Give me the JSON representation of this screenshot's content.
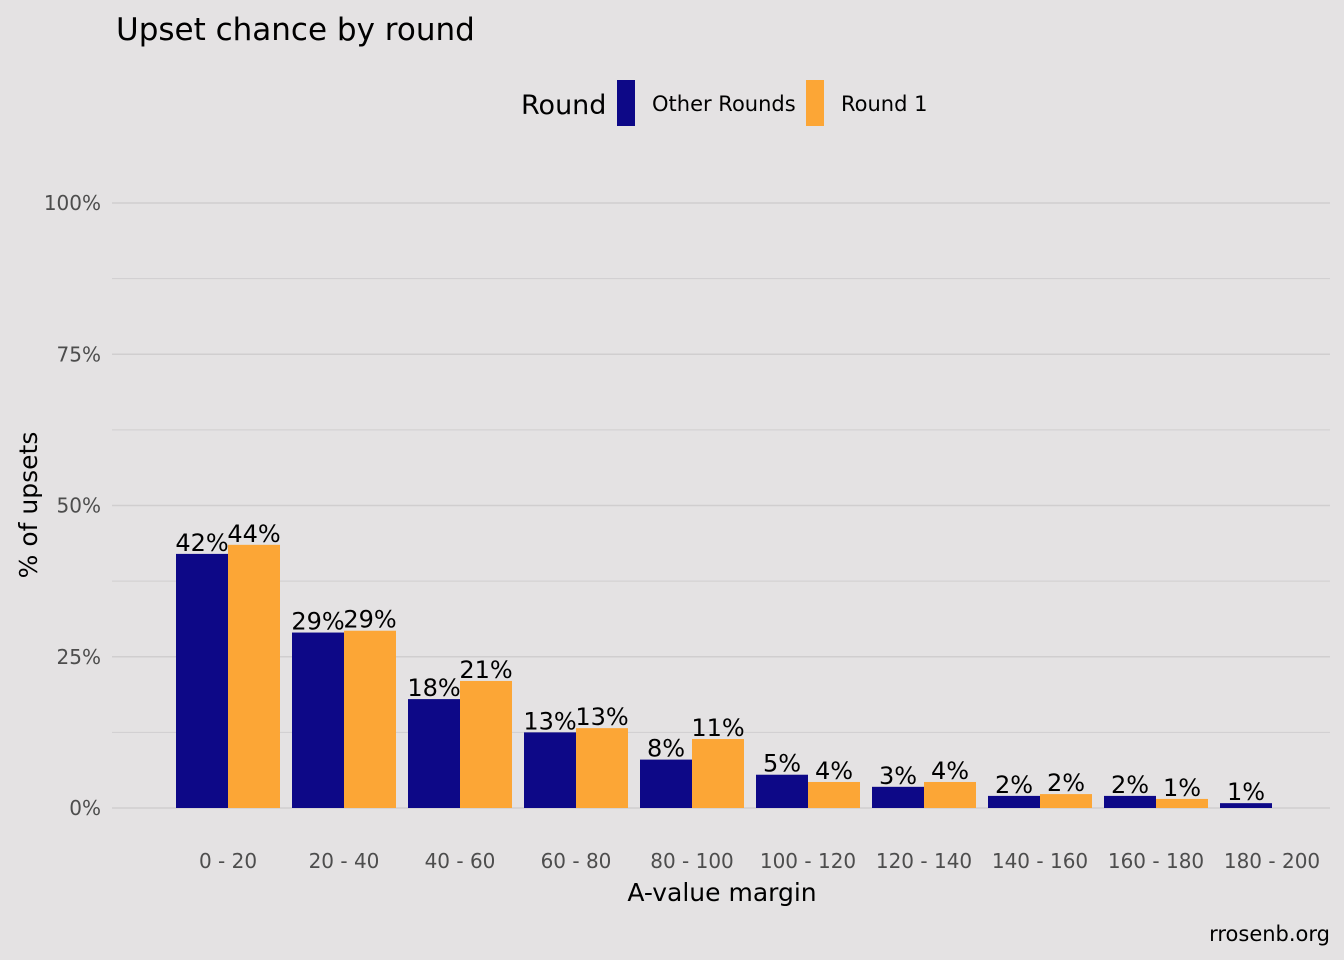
{
  "chart_data": {
    "type": "bar",
    "title": "Upset chance by round",
    "xlabel": "A-value margin",
    "ylabel": "% of upsets",
    "caption": "rrosenb.org",
    "legend": {
      "title": "Round",
      "placement": "top"
    },
    "categories": [
      "0 - 20",
      "20 - 40",
      "40 - 60",
      "60 - 80",
      "80 - 100",
      "100 - 120",
      "120 - 140",
      "140 - 160",
      "160 - 180",
      "180 - 200"
    ],
    "series": [
      {
        "name": "Other Rounds",
        "color": "#0d0887",
        "values": [
          42,
          29,
          18,
          12.5,
          8,
          5.5,
          3.5,
          2,
          2,
          0.8
        ],
        "labels": [
          "42%",
          "29%",
          "18%",
          "13%",
          "8%",
          "5%",
          "3%",
          "2%",
          "2%",
          "1%"
        ]
      },
      {
        "name": "Round 1",
        "color": "#fca636",
        "values": [
          43.5,
          29.3,
          21,
          13.2,
          11.4,
          4.3,
          4.3,
          2.3,
          1.5,
          null
        ],
        "labels": [
          "44%",
          "29%",
          "21%",
          "13%",
          "11%",
          "4%",
          "4%",
          "2%",
          "1%",
          ""
        ]
      }
    ],
    "ylim": [
      0,
      100
    ],
    "yticks": [
      0,
      25,
      50,
      75,
      100
    ],
    "ytick_labels": [
      "0%",
      "25%",
      "50%",
      "75%",
      "100%"
    ],
    "grid": true
  }
}
